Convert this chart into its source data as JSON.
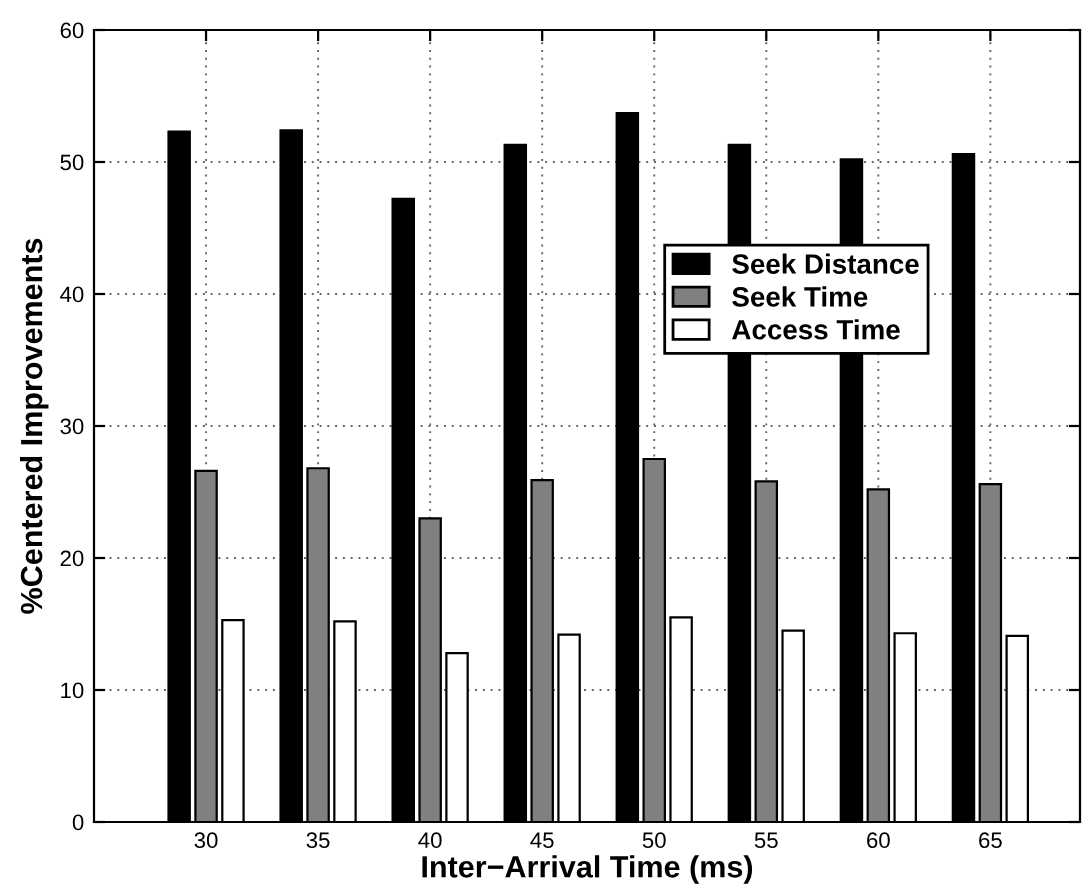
{
  "chart_data": {
    "type": "bar",
    "xlabel": "Inter−Arrival Time (ms)",
    "ylabel": "%Centered Improvements",
    "x": [
      30,
      35,
      40,
      45,
      50,
      55,
      60,
      65
    ],
    "series": [
      {
        "name": "Seek Distance",
        "color": "#000000",
        "values": [
          52.3,
          52.4,
          47.2,
          51.3,
          53.7,
          51.3,
          50.2,
          50.6
        ]
      },
      {
        "name": "Seek Time",
        "color": "#808080",
        "values": [
          26.6,
          26.8,
          23.0,
          25.9,
          27.5,
          25.8,
          25.2,
          25.6
        ]
      },
      {
        "name": "Access Time",
        "color": "#ffffff",
        "values": [
          15.3,
          15.2,
          12.8,
          14.2,
          15.5,
          14.5,
          14.3,
          14.1
        ]
      }
    ],
    "xlim": [
      25,
      69
    ],
    "xticks": [
      30,
      35,
      40,
      45,
      50,
      55,
      60,
      65
    ],
    "ylim": [
      0,
      60
    ],
    "yticks": [
      0,
      10,
      20,
      30,
      40,
      50,
      60
    ],
    "grid": true,
    "legend": "right"
  }
}
